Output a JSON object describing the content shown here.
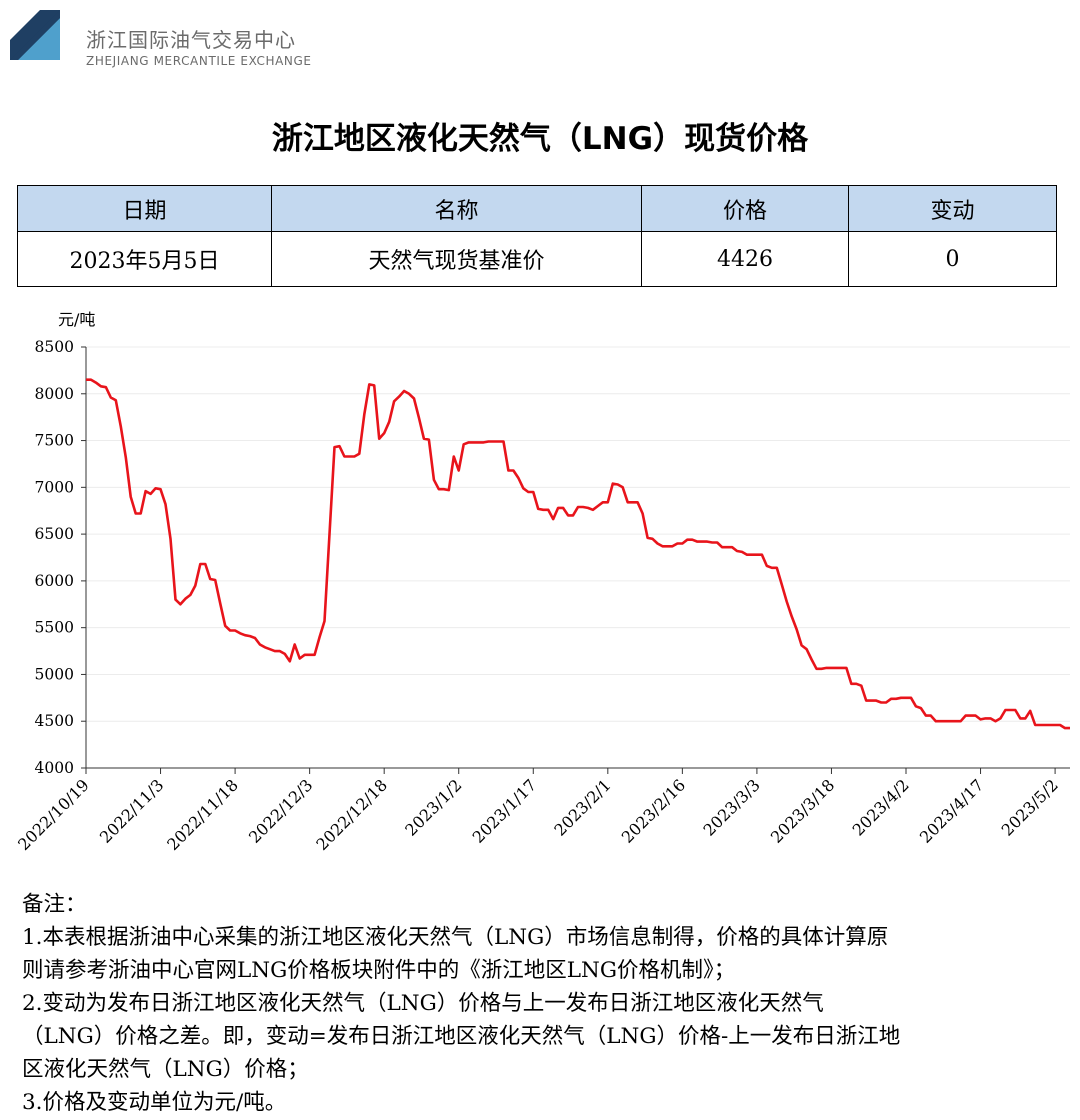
{
  "header": {
    "logo_cn": "浙江国际油气交易中心",
    "logo_en": "ZHEJIANG MERCANTILE EXCHANGE",
    "logo_colors": {
      "dark": "#1f3f63",
      "light": "#4fa0cc"
    }
  },
  "title": "浙江地区液化天然气（LNG）现货价格",
  "table": {
    "header_bg": "#c3d8ef",
    "headers": [
      "日期",
      "名称",
      "价格",
      "变动"
    ],
    "row": [
      "2023年5月5日",
      "天然气现货基准价",
      "4426",
      "0"
    ]
  },
  "chart_data": {
    "type": "line",
    "ylabel": "元/吨",
    "ylim": [
      4000,
      8500
    ],
    "yticks": [
      4000,
      4500,
      5000,
      5500,
      6000,
      6500,
      7000,
      7500,
      8000,
      8500
    ],
    "xlim": [
      "2022-10-19",
      "2023-05-05"
    ],
    "xticks": [
      "2022/10/19",
      "2022/11/3",
      "2022/11/18",
      "2022/12/3",
      "2022/12/18",
      "2023/1/2",
      "2023/1/17",
      "2023/2/1",
      "2023/2/16",
      "2023/3/3",
      "2023/3/18",
      "2023/4/2",
      "2023/4/17",
      "2023/5/2"
    ],
    "grid": true,
    "line_color": "#e8141b",
    "series": [
      {
        "points": [
          [
            "2022-10-19",
            8150
          ],
          [
            "2022-10-20",
            8150
          ],
          [
            "2022-10-21",
            8120
          ],
          [
            "2022-10-22",
            8080
          ],
          [
            "2022-10-23",
            8070
          ],
          [
            "2022-10-24",
            7960
          ],
          [
            "2022-10-25",
            7930
          ],
          [
            "2022-10-26",
            7650
          ],
          [
            "2022-10-27",
            7320
          ],
          [
            "2022-10-28",
            6900
          ],
          [
            "2022-10-29",
            6720
          ],
          [
            "2022-10-30",
            6720
          ],
          [
            "2022-10-31",
            6960
          ],
          [
            "2022-11-01",
            6930
          ],
          [
            "2022-11-02",
            6990
          ],
          [
            "2022-11-03",
            6980
          ],
          [
            "2022-11-04",
            6820
          ],
          [
            "2022-11-05",
            6450
          ],
          [
            "2022-11-06",
            5800
          ],
          [
            "2022-11-07",
            5750
          ],
          [
            "2022-11-08",
            5810
          ],
          [
            "2022-11-09",
            5850
          ],
          [
            "2022-11-10",
            5950
          ],
          [
            "2022-11-11",
            6180
          ],
          [
            "2022-11-12",
            6180
          ],
          [
            "2022-11-13",
            6020
          ],
          [
            "2022-11-14",
            6010
          ],
          [
            "2022-11-15",
            5760
          ],
          [
            "2022-11-16",
            5520
          ],
          [
            "2022-11-17",
            5470
          ],
          [
            "2022-11-18",
            5470
          ],
          [
            "2022-11-19",
            5440
          ],
          [
            "2022-11-20",
            5420
          ],
          [
            "2022-11-21",
            5410
          ],
          [
            "2022-11-22",
            5390
          ],
          [
            "2022-11-23",
            5320
          ],
          [
            "2022-11-24",
            5290
          ],
          [
            "2022-11-25",
            5270
          ],
          [
            "2022-11-26",
            5250
          ],
          [
            "2022-11-27",
            5250
          ],
          [
            "2022-11-28",
            5220
          ],
          [
            "2022-11-29",
            5140
          ],
          [
            "2022-11-30",
            5320
          ],
          [
            "2022-12-01",
            5170
          ],
          [
            "2022-12-02",
            5210
          ],
          [
            "2022-12-03",
            5210
          ],
          [
            "2022-12-04",
            5210
          ],
          [
            "2022-12-05",
            5400
          ],
          [
            "2022-12-06",
            5570
          ],
          [
            "2022-12-07",
            6500
          ],
          [
            "2022-12-08",
            7430
          ],
          [
            "2022-12-09",
            7440
          ],
          [
            "2022-12-10",
            7330
          ],
          [
            "2022-12-11",
            7330
          ],
          [
            "2022-12-12",
            7330
          ],
          [
            "2022-12-13",
            7360
          ],
          [
            "2022-12-14",
            7780
          ],
          [
            "2022-12-15",
            8100
          ],
          [
            "2022-12-16",
            8090
          ],
          [
            "2022-12-17",
            7520
          ],
          [
            "2022-12-18",
            7580
          ],
          [
            "2022-12-19",
            7700
          ],
          [
            "2022-12-20",
            7920
          ],
          [
            "2022-12-21",
            7970
          ],
          [
            "2022-12-22",
            8030
          ],
          [
            "2022-12-23",
            8000
          ],
          [
            "2022-12-24",
            7950
          ],
          [
            "2022-12-25",
            7740
          ],
          [
            "2022-12-26",
            7520
          ],
          [
            "2022-12-27",
            7510
          ],
          [
            "2022-12-28",
            7080
          ],
          [
            "2022-12-29",
            6980
          ],
          [
            "2022-12-30",
            6980
          ],
          [
            "2022-12-31",
            6970
          ],
          [
            "2023-01-01",
            7330
          ],
          [
            "2023-01-02",
            7180
          ],
          [
            "2023-01-03",
            7460
          ],
          [
            "2023-01-04",
            7480
          ],
          [
            "2023-01-05",
            7480
          ],
          [
            "2023-01-06",
            7480
          ],
          [
            "2023-01-07",
            7480
          ],
          [
            "2023-01-08",
            7490
          ],
          [
            "2023-01-09",
            7490
          ],
          [
            "2023-01-10",
            7490
          ],
          [
            "2023-01-11",
            7490
          ],
          [
            "2023-01-12",
            7180
          ],
          [
            "2023-01-13",
            7180
          ],
          [
            "2023-01-14",
            7100
          ],
          [
            "2023-01-15",
            6990
          ],
          [
            "2023-01-16",
            6950
          ],
          [
            "2023-01-17",
            6950
          ],
          [
            "2023-01-18",
            6770
          ],
          [
            "2023-01-19",
            6760
          ],
          [
            "2023-01-20",
            6760
          ],
          [
            "2023-01-21",
            6660
          ],
          [
            "2023-01-22",
            6780
          ],
          [
            "2023-01-23",
            6780
          ],
          [
            "2023-01-24",
            6700
          ],
          [
            "2023-01-25",
            6700
          ],
          [
            "2023-01-26",
            6790
          ],
          [
            "2023-01-27",
            6790
          ],
          [
            "2023-01-28",
            6780
          ],
          [
            "2023-01-29",
            6760
          ],
          [
            "2023-01-30",
            6800
          ],
          [
            "2023-01-31",
            6840
          ],
          [
            "2023-02-01",
            6840
          ],
          [
            "2023-02-02",
            7040
          ],
          [
            "2023-02-03",
            7030
          ],
          [
            "2023-02-04",
            7000
          ],
          [
            "2023-02-05",
            6840
          ],
          [
            "2023-02-06",
            6840
          ],
          [
            "2023-02-07",
            6840
          ],
          [
            "2023-02-08",
            6720
          ],
          [
            "2023-02-09",
            6460
          ],
          [
            "2023-02-10",
            6450
          ],
          [
            "2023-02-11",
            6400
          ],
          [
            "2023-02-12",
            6370
          ],
          [
            "2023-02-13",
            6370
          ],
          [
            "2023-02-14",
            6370
          ],
          [
            "2023-02-15",
            6400
          ],
          [
            "2023-02-16",
            6400
          ],
          [
            "2023-02-17",
            6440
          ],
          [
            "2023-02-18",
            6440
          ],
          [
            "2023-02-19",
            6420
          ],
          [
            "2023-02-20",
            6420
          ],
          [
            "2023-02-21",
            6420
          ],
          [
            "2023-02-22",
            6410
          ],
          [
            "2023-02-23",
            6410
          ],
          [
            "2023-02-24",
            6360
          ],
          [
            "2023-02-25",
            6360
          ],
          [
            "2023-02-26",
            6360
          ],
          [
            "2023-02-27",
            6320
          ],
          [
            "2023-02-28",
            6310
          ],
          [
            "2023-03-01",
            6280
          ],
          [
            "2023-03-02",
            6280
          ],
          [
            "2023-03-03",
            6280
          ],
          [
            "2023-03-04",
            6280
          ],
          [
            "2023-03-05",
            6160
          ],
          [
            "2023-03-06",
            6140
          ],
          [
            "2023-03-07",
            6140
          ],
          [
            "2023-03-08",
            5960
          ],
          [
            "2023-03-09",
            5780
          ],
          [
            "2023-03-10",
            5620
          ],
          [
            "2023-03-11",
            5480
          ],
          [
            "2023-03-12",
            5310
          ],
          [
            "2023-03-13",
            5270
          ],
          [
            "2023-03-14",
            5160
          ],
          [
            "2023-03-15",
            5060
          ],
          [
            "2023-03-16",
            5060
          ],
          [
            "2023-03-17",
            5070
          ],
          [
            "2023-03-18",
            5070
          ],
          [
            "2023-03-19",
            5070
          ],
          [
            "2023-03-20",
            5070
          ],
          [
            "2023-03-21",
            5070
          ],
          [
            "2023-03-22",
            4900
          ],
          [
            "2023-03-23",
            4900
          ],
          [
            "2023-03-24",
            4880
          ],
          [
            "2023-03-25",
            4720
          ],
          [
            "2023-03-26",
            4720
          ],
          [
            "2023-03-27",
            4720
          ],
          [
            "2023-03-28",
            4700
          ],
          [
            "2023-03-29",
            4700
          ],
          [
            "2023-03-30",
            4740
          ],
          [
            "2023-03-31",
            4740
          ],
          [
            "2023-04-01",
            4750
          ],
          [
            "2023-04-02",
            4750
          ],
          [
            "2023-04-03",
            4750
          ],
          [
            "2023-04-04",
            4660
          ],
          [
            "2023-04-05",
            4640
          ],
          [
            "2023-04-06",
            4560
          ],
          [
            "2023-04-07",
            4560
          ],
          [
            "2023-04-08",
            4500
          ],
          [
            "2023-04-09",
            4500
          ],
          [
            "2023-04-10",
            4500
          ],
          [
            "2023-04-11",
            4500
          ],
          [
            "2023-04-12",
            4500
          ],
          [
            "2023-04-13",
            4500
          ],
          [
            "2023-04-14",
            4560
          ],
          [
            "2023-04-15",
            4560
          ],
          [
            "2023-04-16",
            4560
          ],
          [
            "2023-04-17",
            4520
          ],
          [
            "2023-04-18",
            4530
          ],
          [
            "2023-04-19",
            4530
          ],
          [
            "2023-04-20",
            4500
          ],
          [
            "2023-04-21",
            4530
          ],
          [
            "2023-04-22",
            4620
          ],
          [
            "2023-04-23",
            4620
          ],
          [
            "2023-04-24",
            4620
          ],
          [
            "2023-04-25",
            4530
          ],
          [
            "2023-04-26",
            4530
          ],
          [
            "2023-04-27",
            4610
          ],
          [
            "2023-04-28",
            4460
          ],
          [
            "2023-04-29",
            4460
          ],
          [
            "2023-04-30",
            4460
          ],
          [
            "2023-05-01",
            4460
          ],
          [
            "2023-05-02",
            4460
          ],
          [
            "2023-05-03",
            4460
          ],
          [
            "2023-05-04",
            4426
          ],
          [
            "2023-05-05",
            4426
          ]
        ]
      }
    ]
  },
  "notes": {
    "heading": "备注：",
    "lines": [
      "1.本表根据浙油中心采集的浙江地区液化天然气（LNG）市场信息制得，价格的具体计算原",
      "则请参考浙油中心官网LNG价格板块附件中的《浙江地区LNG价格机制》；",
      "2.变动为发布日浙江地区液化天然气（LNG）价格与上一发布日浙江地区液化天然气",
      "（LNG）价格之差。即，变动=发布日浙江地区液化天然气（LNG）价格-上一发布日浙江地",
      "区液化天然气（LNG）价格；",
      "3.价格及变动单位为元/吨。"
    ]
  }
}
